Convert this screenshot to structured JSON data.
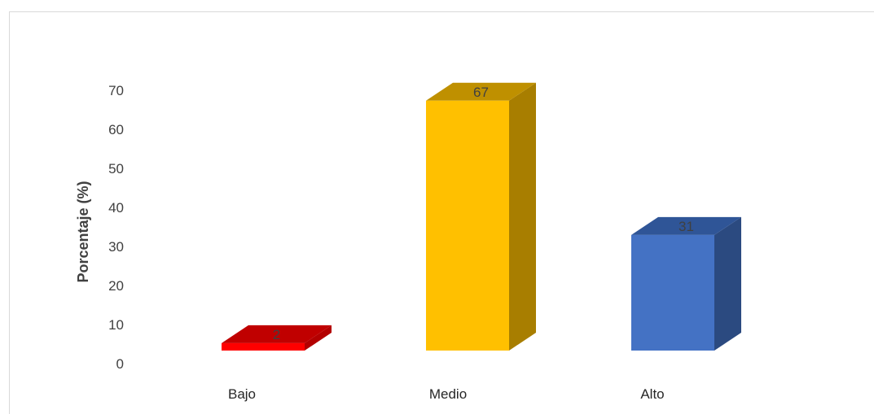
{
  "chart_data": {
    "type": "bar",
    "title": "",
    "xlabel": "",
    "ylabel": "Porcentaje (%)",
    "categories": [
      "Bajo",
      "Medio",
      "Alto"
    ],
    "values": [
      2,
      67,
      31
    ],
    "ylim": [
      0,
      70
    ],
    "yticks": [
      "0",
      "10",
      "20",
      "30",
      "40",
      "50",
      "60",
      "70"
    ],
    "grid": false,
    "legend": "none",
    "colors": {
      "Bajo": {
        "front": "#ff0000",
        "top": "#c00000",
        "side": "#b30000"
      },
      "Medio": {
        "front": "#ffc000",
        "top": "#bf9000",
        "side": "#a87e00"
      },
      "Alto": {
        "front": "#4472c4",
        "top": "#2f5597",
        "side": "#2b4a80"
      }
    }
  }
}
